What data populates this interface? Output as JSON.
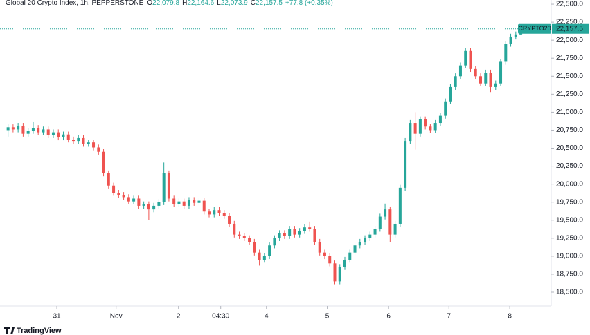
{
  "chart_data": {
    "type": "candlestick",
    "header": {
      "symbol": "Global 20 Crypto Index, 1h, PEPPERSTONE",
      "ohlc_labels": [
        "O",
        "H",
        "L",
        "C"
      ],
      "ohlc_values": [
        "22,079.8",
        "22,164.6",
        "22,073.9",
        "22,157.5"
      ],
      "change": "+77.8 (+0.35%)"
    },
    "up_color": "#26a69a",
    "down_color": "#ef5350",
    "open": [
      20750,
      20790,
      20760,
      20810,
      20700,
      20740,
      20780,
      20720,
      20760,
      20680,
      20720,
      20650,
      20690,
      20620,
      20600,
      20640,
      20560,
      20580,
      20510,
      20450,
      20150,
      19980,
      19880,
      19850,
      19820,
      19760,
      19800,
      19700,
      19720,
      19650,
      19700,
      19750,
      20150,
      19800,
      19720,
      19760,
      19700,
      19780,
      19740,
      19770,
      19620,
      19580,
      19640,
      19600,
      19560,
      19450,
      19300,
      19280,
      19250,
      19200,
      19050,
      18950,
      19000,
      19150,
      19250,
      19320,
      19280,
      19380,
      19300,
      19350,
      19400,
      19380,
      19200,
      19050,
      19000,
      18900,
      18650,
      18850,
      18950,
      19050,
      19150,
      19200,
      19250,
      19300,
      19380,
      19550,
      19650,
      19300,
      19450,
      19950,
      20600,
      20850,
      20700,
      20900,
      20800,
      20750,
      20850,
      20950,
      21150,
      21350,
      21500,
      21650,
      21850,
      21600,
      21500,
      21400,
      21550,
      21350,
      21400,
      21700,
      21950,
      22050,
      22080
    ],
    "high": [
      20830,
      20830,
      20850,
      20850,
      20780,
      20870,
      20820,
      20800,
      20800,
      20760,
      20760,
      20730,
      20730,
      20660,
      20680,
      20680,
      20620,
      20620,
      20550,
      20490,
      20190,
      20020,
      19920,
      19890,
      19860,
      19840,
      19840,
      19760,
      19760,
      19740,
      19790,
      20300,
      20190,
      19840,
      19800,
      19800,
      19820,
      19820,
      19810,
      19810,
      19660,
      19680,
      19680,
      19640,
      19600,
      19490,
      19340,
      19320,
      19290,
      19240,
      19090,
      19040,
      19190,
      19290,
      19360,
      19360,
      19420,
      19420,
      19390,
      19440,
      19480,
      19420,
      19240,
      19090,
      19040,
      18940,
      18890,
      18990,
      19090,
      19190,
      19240,
      19290,
      19340,
      19420,
      19590,
      19730,
      19690,
      19490,
      19990,
      20640,
      20890,
      21000,
      20940,
      20940,
      20840,
      20890,
      20990,
      21190,
      21390,
      21540,
      21690,
      21890,
      21890,
      21640,
      21540,
      21590,
      21590,
      21440,
      21740,
      21990,
      22090,
      22120,
      22164.6
    ],
    "low": [
      20660,
      20720,
      20720,
      20660,
      20660,
      20700,
      20680,
      20680,
      20640,
      20640,
      20610,
      20610,
      20580,
      20560,
      20560,
      20520,
      20520,
      20470,
      20410,
      20110,
      19940,
      19840,
      19810,
      19780,
      19720,
      19720,
      19660,
      19660,
      19500,
      19610,
      19660,
      19710,
      19760,
      19680,
      19680,
      19660,
      19660,
      19700,
      19700,
      19580,
      19540,
      19540,
      19560,
      19520,
      19410,
      19260,
      19240,
      19210,
      19160,
      19010,
      18870,
      18910,
      18960,
      19110,
      19210,
      19240,
      19240,
      19260,
      19260,
      19310,
      19340,
      19160,
      19010,
      18960,
      18860,
      18610,
      18610,
      18810,
      18910,
      19010,
      19110,
      19160,
      19210,
      19260,
      19340,
      19510,
      19200,
      19260,
      19410,
      19910,
      20560,
      20480,
      20660,
      20760,
      20710,
      20710,
      20810,
      20910,
      21110,
      21310,
      21460,
      21610,
      21560,
      21460,
      21360,
      21360,
      21280,
      21310,
      21360,
      21660,
      21910,
      22010,
      22073.9
    ],
    "close": [
      20790,
      20760,
      20810,
      20700,
      20740,
      20780,
      20720,
      20760,
      20680,
      20720,
      20650,
      20690,
      20620,
      20600,
      20640,
      20560,
      20580,
      20510,
      20450,
      20150,
      19980,
      19880,
      19850,
      19820,
      19760,
      19800,
      19700,
      19720,
      19650,
      19700,
      19750,
      20150,
      19800,
      19720,
      19760,
      19700,
      19780,
      19740,
      19770,
      19620,
      19580,
      19640,
      19600,
      19560,
      19450,
      19300,
      19280,
      19250,
      19200,
      19050,
      18950,
      19000,
      19150,
      19250,
      19320,
      19280,
      19380,
      19300,
      19350,
      19400,
      19380,
      19200,
      19050,
      19000,
      18900,
      18650,
      18850,
      18950,
      19050,
      19150,
      19200,
      19250,
      19300,
      19380,
      19550,
      19650,
      19300,
      19450,
      19950,
      20600,
      20850,
      20700,
      20900,
      20800,
      20750,
      20850,
      20950,
      21150,
      21350,
      21500,
      21650,
      21850,
      21600,
      21500,
      21400,
      21550,
      21350,
      21400,
      21700,
      21950,
      22050,
      22080,
      22157.5
    ],
    "last_price": {
      "name": "CRYPTO20",
      "value": 22157.5,
      "value_label": "22,157.5"
    },
    "xlim": [
      0,
      108
    ],
    "xticks": [
      {
        "value": 10.2,
        "label": "31"
      },
      {
        "value": 22.0,
        "label": "Nov"
      },
      {
        "value": 34.4,
        "label": "2"
      },
      {
        "value": 42.8,
        "label": "04:30"
      },
      {
        "value": 51.9,
        "label": "4"
      },
      {
        "value": 64.0,
        "label": "5"
      },
      {
        "value": 76.2,
        "label": "6"
      },
      {
        "value": 88.2,
        "label": "7"
      },
      {
        "value": 100.3,
        "label": "8"
      }
    ],
    "ylim": [
      18337,
      22558
    ],
    "yticks": [
      {
        "value": 18500,
        "label": "18,500.0"
      },
      {
        "value": 18750,
        "label": "18,750.0"
      },
      {
        "value": 19000,
        "label": "19,000.0"
      },
      {
        "value": 19250,
        "label": "19,250.0"
      },
      {
        "value": 19500,
        "label": "19,500.0"
      },
      {
        "value": 19750,
        "label": "19,750.0"
      },
      {
        "value": 20000,
        "label": "20,000.0"
      },
      {
        "value": 20250,
        "label": "20,250.0"
      },
      {
        "value": 20500,
        "label": "20,500.0"
      },
      {
        "value": 20750,
        "label": "20,750.0"
      },
      {
        "value": 21000,
        "label": "21,000.0"
      },
      {
        "value": 21250,
        "label": "21,250.0"
      },
      {
        "value": 21500,
        "label": "21,500.0"
      },
      {
        "value": 21750,
        "label": "21,750.0"
      },
      {
        "value": 22000,
        "label": "22,000.0"
      },
      {
        "value": 22250,
        "label": "22,250.0"
      },
      {
        "value": 22500,
        "label": "22,500.0"
      }
    ],
    "logo": "TradingView"
  }
}
